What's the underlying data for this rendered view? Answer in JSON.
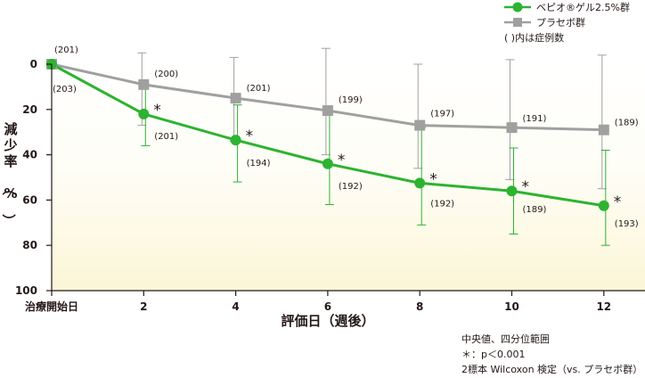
{
  "chart_data": {
    "type": "line",
    "xlabel": "評価日（週後）",
    "ylabel": "減少率（%）",
    "ylim": [
      0,
      100
    ],
    "y_inverted": true,
    "yticks": [
      0,
      20,
      40,
      60,
      80,
      100
    ],
    "x": [
      0,
      2,
      4,
      6,
      8,
      10,
      12
    ],
    "xtick_labels": [
      "治療開始日",
      "2",
      "4",
      "6",
      "8",
      "10",
      "12"
    ],
    "series": [
      {
        "name": "ベピオ®ゲル2.5%群",
        "color": "#2db330",
        "marker": "circle",
        "values": [
          0,
          22,
          33.5,
          44,
          52.5,
          56,
          62.5
        ],
        "error_low": [
          0,
          9,
          18,
          21,
          28,
          37,
          38
        ],
        "error_high": [
          0,
          36,
          52,
          62,
          71,
          75,
          80
        ],
        "n_labels": [
          "(203)",
          "(201)",
          "(194)",
          "(192)",
          "(192)",
          "(189)",
          "(193)"
        ],
        "significance": [
          "",
          "*",
          "*",
          "*",
          "*",
          "*",
          "*"
        ]
      },
      {
        "name": "プラセボ群",
        "color": "#a0a0a0",
        "marker": "square",
        "values": [
          0,
          9,
          15,
          20.5,
          27,
          28,
          29
        ],
        "error_low": [
          0,
          -5,
          -3,
          -7,
          0,
          -2,
          -4
        ],
        "error_high": [
          0,
          27,
          34,
          40,
          46,
          51,
          55
        ],
        "n_labels": [
          "(201)",
          "(200)",
          "(201)",
          "(199)",
          "(197)",
          "(191)",
          "(189)"
        ]
      }
    ],
    "legend_note": "( )内は症例数",
    "legend_placement": "top-right",
    "footnotes": [
      "中央値、四分位範囲",
      "＊：p＜0.001",
      "2標本 Wilcoxon 検定（vs. プラセボ群）"
    ]
  }
}
